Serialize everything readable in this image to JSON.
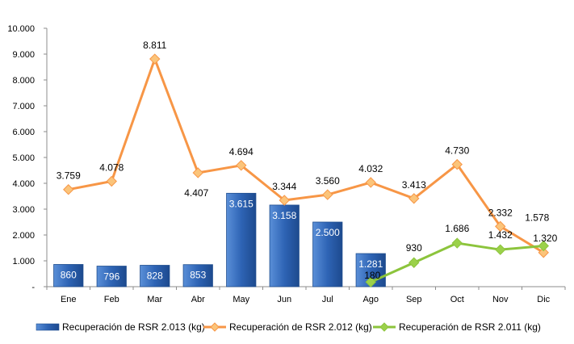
{
  "chart_data": {
    "type": "bar+line",
    "categories": [
      "Ene",
      "Feb",
      "Mar",
      "Abr",
      "May",
      "Jun",
      "Jul",
      "Ago",
      "Sep",
      "Oct",
      "Nov",
      "Dic"
    ],
    "ylim": [
      0,
      10000
    ],
    "y_ticks": [
      "-",
      "1.000",
      "2.000",
      "3.000",
      "4.000",
      "5.000",
      "6.000",
      "7.000",
      "8.000",
      "9.000",
      "10.000"
    ],
    "grid": false,
    "legend_position": "bottom",
    "series": [
      {
        "name": "Recuperación de RSR 2.013 (kg)",
        "kind": "bar",
        "color": "#2e64b5",
        "values": [
          860,
          796,
          828,
          853,
          3615,
          3158,
          2500,
          1281,
          null,
          null,
          null,
          null
        ],
        "labels": [
          "860",
          "796",
          "828",
          "853",
          "3.615",
          "3.158",
          "2.500",
          "1.281",
          "",
          "",
          "",
          ""
        ]
      },
      {
        "name": "Recuperación de RSR 2.012 (kg)",
        "kind": "line",
        "color": "#f79646",
        "marker_color": "#fbc47a",
        "values": [
          3759,
          4078,
          8811,
          4407,
          4694,
          3344,
          3560,
          4032,
          3413,
          4730,
          2332,
          1320
        ],
        "labels": [
          "3.759",
          "4.078",
          "8.811",
          "4.407",
          "4.694",
          "3.344",
          "3.560",
          "4.032",
          "3.413",
          "4.730",
          "2.332",
          "1.320"
        ]
      },
      {
        "name": "Recuperación de RSR 2.011 (kg)",
        "kind": "line",
        "color": "#8cc43c",
        "marker_color": "#9bd14a",
        "values": [
          null,
          null,
          null,
          null,
          null,
          null,
          null,
          180,
          930,
          1686,
          1432,
          1578
        ],
        "labels": [
          "",
          "",
          "",
          "",
          "",
          "",
          "",
          "180",
          "930",
          "1.686",
          "1.432",
          "1.578"
        ]
      }
    ]
  }
}
